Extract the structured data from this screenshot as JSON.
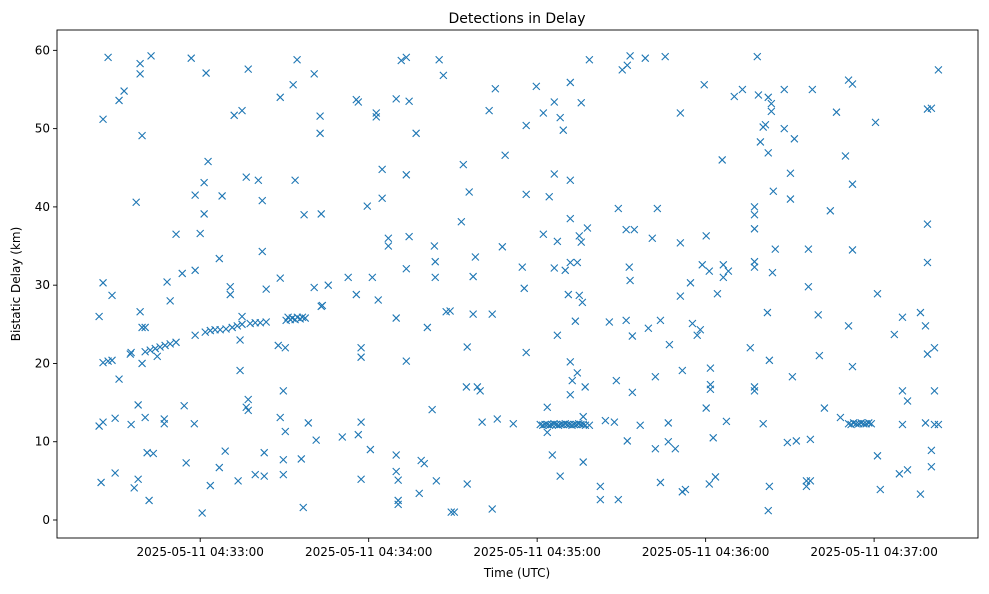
{
  "chart_data": {
    "type": "scatter",
    "title": "Detections in Delay",
    "xlabel": "Time (UTC)",
    "ylabel": "Bistatic Delay (km)",
    "x_reference": "2025-05-11 04:32:00",
    "x_unit": "seconds after 2025-05-11 04:32:00",
    "xlim": [
      9,
      337
    ],
    "ylim": [
      -2.3,
      62.6
    ],
    "x_ticks": [
      {
        "value": 60,
        "label": "2025-05-11 04:33:00"
      },
      {
        "value": 120,
        "label": "2025-05-11 04:34:00"
      },
      {
        "value": 180,
        "label": "2025-05-11 04:35:00"
      },
      {
        "value": 240,
        "label": "2025-05-11 04:36:00"
      },
      {
        "value": 300,
        "label": "2025-05-11 04:37:00"
      }
    ],
    "y_ticks": [
      {
        "value": 0,
        "label": "0"
      },
      {
        "value": 10,
        "label": "10"
      },
      {
        "value": 20,
        "label": "20"
      },
      {
        "value": 30,
        "label": "30"
      },
      {
        "value": 40,
        "label": "40"
      },
      {
        "value": 50,
        "label": "50"
      },
      {
        "value": 60,
        "label": "60"
      }
    ],
    "grid": false,
    "legend": "none",
    "marker": "x",
    "color": "#1f77b4",
    "points": [
      [
        24.0,
        26
      ],
      [
        24.7,
        4.8
      ],
      [
        24.0,
        12
      ],
      [
        25.4,
        12.5
      ],
      [
        25.4,
        30.3
      ],
      [
        25.4,
        51.2
      ],
      [
        27.2,
        59.1
      ],
      [
        28.6,
        28.7
      ],
      [
        29.7,
        6
      ],
      [
        29.7,
        13
      ],
      [
        31.1,
        53.6
      ],
      [
        31.1,
        18
      ],
      [
        32.9,
        54.8
      ],
      [
        35.1,
        21.2
      ],
      [
        35.4,
        12.2
      ],
      [
        36.5,
        4.1
      ],
      [
        37.2,
        40.6
      ],
      [
        37.9,
        5.2
      ],
      [
        37.9,
        14.7
      ],
      [
        38.6,
        58.3
      ],
      [
        38.6,
        57
      ],
      [
        38.6,
        26.6
      ],
      [
        39.3,
        49.1
      ],
      [
        39.3,
        24.6
      ],
      [
        39.3,
        20
      ],
      [
        40.4,
        13.1
      ],
      [
        40.4,
        24.6
      ],
      [
        41.1,
        8.6
      ],
      [
        41.8,
        2.5
      ],
      [
        42.5,
        59.3
      ],
      [
        43.3,
        8.5
      ],
      [
        44.7,
        20.9
      ],
      [
        47.2,
        12.9
      ],
      [
        47.2,
        12.3
      ],
      [
        48.2,
        30.4
      ],
      [
        49.3,
        28
      ],
      [
        51.4,
        36.5
      ],
      [
        53.6,
        31.5
      ],
      [
        54.3,
        14.6
      ],
      [
        55.0,
        7.3
      ],
      [
        56.8,
        59
      ],
      [
        57.9,
        12.3
      ],
      [
        58.2,
        41.5
      ],
      [
        58.2,
        31.9
      ],
      [
        60,
        36.6
      ],
      [
        60.7,
        0.9
      ],
      [
        61.4,
        43.1
      ],
      [
        61.4,
        39.1
      ],
      [
        62.1,
        57.1
      ],
      [
        62.8,
        45.8
      ],
      [
        63.6,
        4.4
      ],
      [
        66.8,
        33.4
      ],
      [
        66.8,
        6.7
      ],
      [
        67.8,
        41.4
      ],
      [
        68.9,
        8.8
      ],
      [
        70.7,
        29.8
      ],
      [
        70.7,
        28.8
      ],
      [
        72.1,
        51.7
      ],
      [
        73.5,
        5
      ],
      [
        74.2,
        19.1
      ],
      [
        74.2,
        23
      ],
      [
        74.9,
        52.3
      ],
      [
        74.9,
        26
      ],
      [
        76.4,
        14.4
      ],
      [
        76.4,
        43.8
      ],
      [
        77.1,
        57.6
      ],
      [
        77.1,
        15.4
      ],
      [
        77.1,
        14
      ],
      [
        79.6,
        5.8
      ],
      [
        80.7,
        43.4
      ],
      [
        82.1,
        34.3
      ],
      [
        82.1,
        40.8
      ],
      [
        82.8,
        5.6
      ],
      [
        82.8,
        8.6
      ],
      [
        83.5,
        29.5
      ],
      [
        87.8,
        22.3
      ],
      [
        88.5,
        54
      ],
      [
        88.5,
        30.9
      ],
      [
        88.5,
        13.1
      ],
      [
        89.6,
        16.5
      ],
      [
        89.6,
        7.7
      ],
      [
        89.6,
        5.8
      ],
      [
        90.3,
        11.3
      ],
      [
        90.3,
        22
      ],
      [
        93.1,
        55.6
      ],
      [
        93.8,
        43.4
      ],
      [
        94.5,
        58.8
      ],
      [
        96.0,
        7.8
      ],
      [
        96.7,
        1.6
      ],
      [
        97.0,
        39
      ],
      [
        98.5,
        12.4
      ],
      [
        100.6,
        29.7
      ],
      [
        100.6,
        57
      ],
      [
        101.3,
        10.2
      ],
      [
        102.7,
        51.6
      ],
      [
        102.7,
        49.4
      ],
      [
        103.1,
        39.1
      ],
      [
        103.1,
        27.3
      ],
      [
        103.5,
        27.4
      ],
      [
        105.6,
        30
      ],
      [
        110.6,
        10.6
      ],
      [
        112.7,
        31
      ],
      [
        115.6,
        53.7
      ],
      [
        115.6,
        28.8
      ],
      [
        116.3,
        53.4
      ],
      [
        116.3,
        10.9
      ],
      [
        117.3,
        22
      ],
      [
        117.3,
        20.8
      ],
      [
        117.3,
        12.5
      ],
      [
        117.3,
        5.2
      ],
      [
        119.5,
        40.1
      ],
      [
        120.6,
        9
      ],
      [
        121.3,
        31
      ],
      [
        122.7,
        51.5
      ],
      [
        122.7,
        52
      ],
      [
        123.4,
        28.1
      ],
      [
        124.8,
        44.8
      ],
      [
        124.8,
        41.1
      ],
      [
        127.0,
        35
      ],
      [
        127.0,
        36
      ],
      [
        129.8,
        8.3
      ],
      [
        129.8,
        53.8
      ],
      [
        129.8,
        25.8
      ],
      [
        129.8,
        6.2
      ],
      [
        130.5,
        2
      ],
      [
        130.5,
        5.1
      ],
      [
        130.5,
        2.5
      ],
      [
        131.6,
        58.7
      ],
      [
        133.4,
        59.1
      ],
      [
        133.4,
        44.1
      ],
      [
        133.4,
        32.1
      ],
      [
        133.4,
        20.3
      ],
      [
        134.4,
        53.5
      ],
      [
        134.4,
        36.2
      ],
      [
        136.9,
        49.4
      ],
      [
        138.0,
        3.4
      ],
      [
        138.7,
        7.6
      ],
      [
        139.8,
        7.2
      ],
      [
        140.9,
        24.6
      ],
      [
        142.6,
        14.1
      ],
      [
        143.4,
        35
      ],
      [
        143.7,
        33
      ],
      [
        143.7,
        31
      ],
      [
        144.1,
        5
      ],
      [
        145.1,
        58.8
      ],
      [
        146.6,
        56.8
      ],
      [
        147.6,
        26.6
      ],
      [
        149.0,
        26.7
      ],
      [
        149.4,
        1
      ],
      [
        150.5,
        1
      ],
      [
        153.0,
        38.1
      ],
      [
        153.7,
        45.4
      ],
      [
        154.8,
        17
      ],
      [
        155.1,
        4.6
      ],
      [
        155.1,
        22.1
      ],
      [
        155.8,
        41.9
      ],
      [
        157.2,
        31.1
      ],
      [
        157.2,
        26.3
      ],
      [
        158.0,
        33.6
      ],
      [
        158.7,
        17
      ],
      [
        159.7,
        16.5
      ],
      [
        160.4,
        12.5
      ],
      [
        162.9,
        52.3
      ],
      [
        164.0,
        26.3
      ],
      [
        164.0,
        1.4
      ],
      [
        165.1,
        55.1
      ],
      [
        165.8,
        12.9
      ],
      [
        167.6,
        34.9
      ],
      [
        168.6,
        46.6
      ],
      [
        171.5,
        12.3
      ],
      [
        174.7,
        32.3
      ],
      [
        175.4,
        29.6
      ],
      [
        176.1,
        50.4
      ],
      [
        176.1,
        21.4
      ],
      [
        176.1,
        41.6
      ],
      [
        179.7,
        55.4
      ],
      [
        182.2,
        52
      ],
      [
        182.2,
        36.5
      ],
      [
        183.6,
        11.2
      ],
      [
        183.6,
        14.4
      ],
      [
        184.3,
        41.3
      ],
      [
        185.4,
        8.3
      ],
      [
        186.1,
        32.2
      ],
      [
        186.1,
        44.2
      ],
      [
        186.1,
        53.4
      ],
      [
        187.2,
        35.6
      ],
      [
        187.2,
        23.6
      ],
      [
        188.2,
        51.4
      ],
      [
        188.2,
        5.6
      ],
      [
        189.3,
        49.8
      ],
      [
        190.0,
        31.9
      ],
      [
        191.1,
        28.8
      ],
      [
        191.8,
        55.9
      ],
      [
        191.8,
        43.4
      ],
      [
        191.8,
        38.5
      ],
      [
        191.8,
        32.9
      ],
      [
        191.8,
        20.2
      ],
      [
        191.8,
        16
      ],
      [
        192.5,
        17.8
      ],
      [
        193.6,
        25.4
      ],
      [
        194.3,
        32.9
      ],
      [
        194.3,
        18.8
      ],
      [
        195.0,
        28.7
      ],
      [
        195.0,
        36.3
      ],
      [
        195.7,
        53.3
      ],
      [
        195.7,
        35.5
      ],
      [
        196.1,
        27.8
      ],
      [
        196.4,
        13.2
      ],
      [
        196.4,
        7.4
      ],
      [
        197.1,
        17
      ],
      [
        197.9,
        37.3
      ],
      [
        198.6,
        58.8
      ],
      [
        202.5,
        2.6
      ],
      [
        202.5,
        4.3
      ],
      [
        204.3,
        12.7
      ],
      [
        205.7,
        25.3
      ],
      [
        207.5,
        12.5
      ],
      [
        208.2,
        17.8
      ],
      [
        208.9,
        39.8
      ],
      [
        208.9,
        2.6
      ],
      [
        210.3,
        57.5
      ],
      [
        211.7,
        37.1
      ],
      [
        211.7,
        25.5
      ],
      [
        212.1,
        58.1
      ],
      [
        212.1,
        10.1
      ],
      [
        212.8,
        32.3
      ],
      [
        213.1,
        59.3
      ],
      [
        213.1,
        30.6
      ],
      [
        213.9,
        23.5
      ],
      [
        213.9,
        16.3
      ],
      [
        214.6,
        37.1
      ],
      [
        216.7,
        12.1
      ],
      [
        218.5,
        59
      ],
      [
        219.6,
        24.5
      ],
      [
        221.0,
        36
      ],
      [
        222.1,
        18.3
      ],
      [
        222.1,
        9.1
      ],
      [
        222.8,
        39.8
      ],
      [
        223.9,
        25.5
      ],
      [
        223.9,
        4.8
      ],
      [
        225.6,
        59.2
      ],
      [
        226.7,
        12.4
      ],
      [
        226.7,
        10
      ],
      [
        227.1,
        22.4
      ],
      [
        229.2,
        9.1
      ],
      [
        231.0,
        52
      ],
      [
        231.0,
        35.4
      ],
      [
        231.0,
        28.6
      ],
      [
        231.7,
        3.6
      ],
      [
        231.7,
        19.1
      ],
      [
        232.8,
        3.9
      ],
      [
        234.6,
        30.3
      ],
      [
        235.3,
        25.1
      ],
      [
        237.0,
        23.6
      ],
      [
        238.1,
        24.3
      ],
      [
        238.8,
        32.6
      ],
      [
        239.5,
        55.6
      ],
      [
        240.2,
        36.3
      ],
      [
        240.2,
        14.3
      ],
      [
        241.3,
        4.6
      ],
      [
        241.3,
        31.8
      ],
      [
        241.7,
        19.4
      ],
      [
        241.7,
        17.3
      ],
      [
        241.7,
        16.7
      ],
      [
        242.7,
        10.5
      ],
      [
        243.5,
        5.5
      ],
      [
        244.2,
        28.9
      ],
      [
        245.9,
        46
      ],
      [
        246.3,
        31
      ],
      [
        246.3,
        32.6
      ],
      [
        247.4,
        12.6
      ],
      [
        248.1,
        31.8
      ],
      [
        250.2,
        54.1
      ],
      [
        253.1,
        55
      ],
      [
        255.9,
        22
      ],
      [
        257.4,
        37.2
      ],
      [
        257.4,
        39
      ],
      [
        257.4,
        40
      ],
      [
        257.4,
        33
      ],
      [
        257.4,
        32.3
      ],
      [
        257.4,
        17
      ],
      [
        257.4,
        16.5
      ],
      [
        258.4,
        59.2
      ],
      [
        258.8,
        54.3
      ],
      [
        259.5,
        48.3
      ],
      [
        260.5,
        50.2
      ],
      [
        260.5,
        12.3
      ],
      [
        261.3,
        50.5
      ],
      [
        262.0,
        26.5
      ],
      [
        262.3,
        54
      ],
      [
        262.3,
        46.9
      ],
      [
        262.3,
        1.2
      ],
      [
        262.7,
        4.3
      ],
      [
        262.7,
        20.4
      ],
      [
        263.4,
        52.2
      ],
      [
        263.4,
        53.2
      ],
      [
        263.8,
        31.6
      ],
      [
        264.1,
        42
      ],
      [
        264.8,
        34.6
      ],
      [
        268.0,
        55
      ],
      [
        268.0,
        50
      ],
      [
        269.1,
        9.9
      ],
      [
        270.2,
        41
      ],
      [
        270.2,
        44.3
      ],
      [
        270.9,
        18.3
      ],
      [
        271.6,
        48.7
      ],
      [
        272.3,
        10.1
      ],
      [
        275.9,
        5
      ],
      [
        275.9,
        4.3
      ],
      [
        276.6,
        34.6
      ],
      [
        276.6,
        29.8
      ],
      [
        277.3,
        10.3
      ],
      [
        277.3,
        5
      ],
      [
        278.0,
        55
      ],
      [
        280.1,
        26.2
      ],
      [
        280.5,
        21
      ],
      [
        282.3,
        14.3
      ],
      [
        284.4,
        39.5
      ],
      [
        286.6,
        52.1
      ],
      [
        288.0,
        13.1
      ],
      [
        289.8,
        46.5
      ],
      [
        290.9,
        56.2
      ],
      [
        290.9,
        24.8
      ],
      [
        292.3,
        55.7
      ],
      [
        292.3,
        42.9
      ],
      [
        292.3,
        34.5
      ],
      [
        292.3,
        19.6
      ],
      [
        300.5,
        50.8
      ],
      [
        301.2,
        28.9
      ],
      [
        301.2,
        8.2
      ],
      [
        302.2,
        3.9
      ],
      [
        307.2,
        23.7
      ],
      [
        309.0,
        5.9
      ],
      [
        310.1,
        16.5
      ],
      [
        310.1,
        25.9
      ],
      [
        310.1,
        12.2
      ],
      [
        311.9,
        15.2
      ],
      [
        311.9,
        6.4
      ],
      [
        316.5,
        26.5
      ],
      [
        316.5,
        3.3
      ],
      [
        318.3,
        24.8
      ],
      [
        318.3,
        12.4
      ],
      [
        319.0,
        52.5
      ],
      [
        319.0,
        32.9
      ],
      [
        319.0,
        37.8
      ],
      [
        319.0,
        21.2
      ],
      [
        320.4,
        52.6
      ],
      [
        320.4,
        6.8
      ],
      [
        320.4,
        8.9
      ],
      [
        321.5,
        22
      ],
      [
        321.5,
        16.5
      ],
      [
        322.9,
        57.5
      ],
      [
        321.5,
        12.2
      ],
      [
        322.9,
        12.2
      ],
      [
        25.4,
        20.1
      ],
      [
        27.2,
        20.3
      ],
      [
        28.6,
        20.4
      ],
      [
        35.4,
        21.4
      ],
      [
        40.4,
        21.5
      ],
      [
        42.2,
        21.7
      ],
      [
        44.0,
        21.9
      ],
      [
        45.7,
        22.1
      ],
      [
        47.5,
        22.3
      ],
      [
        49.3,
        22.5
      ],
      [
        51.4,
        22.7
      ],
      [
        58.2,
        23.6
      ],
      [
        61.8,
        24
      ],
      [
        63.6,
        24.2
      ],
      [
        65.3,
        24.3
      ],
      [
        67.1,
        24.3
      ],
      [
        69.2,
        24.4
      ],
      [
        71.4,
        24.6
      ],
      [
        73.2,
        24.8
      ],
      [
        74.9,
        25
      ],
      [
        77.8,
        25.1
      ],
      [
        79.6,
        25.2
      ],
      [
        81.4,
        25.2
      ],
      [
        83.5,
        25.3
      ],
      [
        90.6,
        25.5
      ],
      [
        91.3,
        25.9
      ],
      [
        92.1,
        25.6
      ],
      [
        92.8,
        25.8
      ],
      [
        93.8,
        25.6
      ],
      [
        94.6,
        25.9
      ],
      [
        95.6,
        25.7
      ],
      [
        96.4,
        25.9
      ],
      [
        97.4,
        25.8
      ],
      [
        181.1,
        12.2
      ],
      [
        182.0,
        12.1
      ],
      [
        182.8,
        12.2
      ],
      [
        183.6,
        12.2
      ],
      [
        184.4,
        12.1
      ],
      [
        185.2,
        12.2
      ],
      [
        186.0,
        12.3
      ],
      [
        186.8,
        12.2
      ],
      [
        187.6,
        12.1
      ],
      [
        188.4,
        12.2
      ],
      [
        189.2,
        12.2
      ],
      [
        190.0,
        12.3
      ],
      [
        190.8,
        12.2
      ],
      [
        191.6,
        12.2
      ],
      [
        192.4,
        12.1
      ],
      [
        193.2,
        12.2
      ],
      [
        194.0,
        12.2
      ],
      [
        194.8,
        12.3
      ],
      [
        195.6,
        12.2
      ],
      [
        196.4,
        12.2
      ],
      [
        197.2,
        12.1
      ],
      [
        198.6,
        12.1
      ],
      [
        290.9,
        12.3
      ],
      [
        291.8,
        12.2
      ],
      [
        292.7,
        12.4
      ],
      [
        293.6,
        12.3
      ],
      [
        294.5,
        12.3
      ],
      [
        295.4,
        12.4
      ],
      [
        296.3,
        12.3
      ],
      [
        297.2,
        12.3
      ],
      [
        298.1,
        12.4
      ],
      [
        299.0,
        12.3
      ]
    ]
  }
}
